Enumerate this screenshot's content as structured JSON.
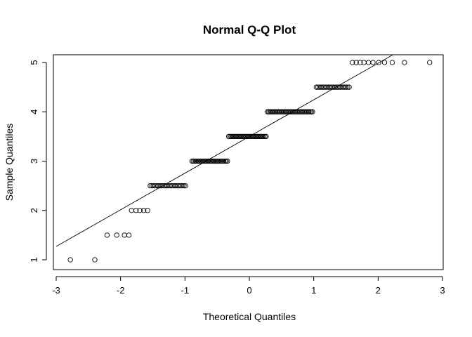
{
  "chart_data": {
    "type": "scatter",
    "title": "Normal Q-Q Plot",
    "xlabel": "Theoretical Quantiles",
    "ylabel": "Sample Quantiles",
    "xlim": [
      -3,
      3
    ],
    "ylim": [
      1,
      5
    ],
    "x_ticks": [
      -3,
      -2,
      -1,
      0,
      1,
      2,
      3
    ],
    "y_ticks": [
      1,
      2,
      3,
      4,
      5
    ],
    "grid": false,
    "legend": "none",
    "reference_line": {
      "from": [
        -3.0,
        1.27
      ],
      "to": [
        2.22,
        5.15
      ]
    },
    "groups": [
      {
        "y": 1.0,
        "x": [
          -2.78,
          -2.4
        ]
      },
      {
        "y": 1.5,
        "x": [
          -2.21,
          -2.06,
          -1.94,
          -1.87
        ]
      },
      {
        "y": 2.0,
        "x": [
          -1.83,
          -1.76,
          -1.7,
          -1.64,
          -1.58
        ]
      },
      {
        "y": 2.5,
        "x_range": [
          -1.54,
          -0.99
        ],
        "count": 24
      },
      {
        "y": 3.0,
        "x_range": [
          -0.89,
          -0.34
        ],
        "count": 30
      },
      {
        "y": 3.5,
        "x_range": [
          -0.32,
          0.26
        ],
        "count": 32
      },
      {
        "y": 4.0,
        "x_range": [
          0.28,
          0.98
        ],
        "count": 40
      },
      {
        "y": 4.5,
        "x_range": [
          1.04,
          1.55
        ],
        "count": 22
      },
      {
        "y": 5.0,
        "x": [
          1.6,
          1.66,
          1.72,
          1.78,
          1.85,
          1.92,
          2.01,
          2.1,
          2.22,
          2.41,
          2.8
        ]
      }
    ]
  }
}
